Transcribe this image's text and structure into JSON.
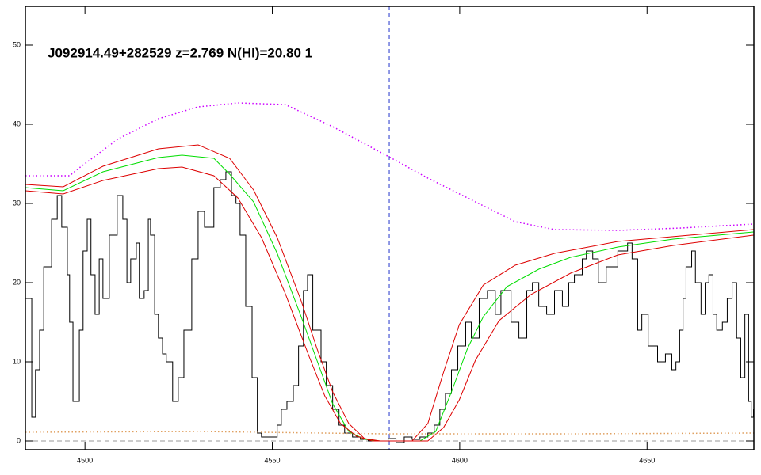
{
  "chart_data": {
    "type": "spectrum",
    "title": "J092914.49+282529 z=2.769 N(HI)=20.80 1",
    "xlim": [
      4484.1,
      4678.5
    ],
    "ylim": [
      -1.1,
      54.9
    ],
    "xticks": [
      4500,
      4550,
      4600,
      4650
    ],
    "yticks": [
      0,
      10,
      20,
      30,
      40,
      50
    ],
    "vline": 4581.2,
    "vline_color": "#2233cc",
    "hline": 0,
    "hline_color": "#999999",
    "series": [
      {
        "style": "step",
        "color": "#000000",
        "x": [
          4484.1,
          4485.8,
          4486.8,
          4487.9,
          4489.0,
          4491.1,
          4492.6,
          4493.8,
          4495.3,
          4495.9,
          4496.8,
          4498.1,
          4498.5,
          4499.5,
          4500.6,
          4501.6,
          4502.7,
          4503.8,
          4504.8,
          4506.5,
          4508.6,
          4510.1,
          4511.2,
          4512.2,
          4513.7,
          4514.5,
          4515.8,
          4516.9,
          4517.5,
          4518.6,
          4519.6,
          4520.7,
          4521.7,
          4523.4,
          4524.9,
          4526.4,
          4528.5,
          4530.2,
          4531.9,
          4534.4,
          4536.1,
          4537.6,
          4539.1,
          4540.3,
          4541.4,
          4542.9,
          4544.6,
          4546.0,
          4547.1,
          4550.3,
          4551.3,
          4552.4,
          4553.9,
          4555.6,
          4557.0,
          4558.3,
          4559.4,
          4560.8,
          4563.0,
          4564.4,
          4566.1,
          4567.8,
          4569.3,
          4571.4,
          4573.5,
          4575.6,
          4579.9,
          4580.9,
          4583.0,
          4585.2,
          4587.3,
          4589.4,
          4591.5,
          4593.2,
          4594.7,
          4596.2,
          4597.8,
          4599.5,
          4601.6,
          4603.1,
          4605.2,
          4607.4,
          4609.5,
          4611.0,
          4613.7,
          4615.8,
          4617.9,
          4619.4,
          4621.1,
          4623.2,
          4625.3,
          4627.4,
          4629.1,
          4630.6,
          4632.7,
          4633.8,
          4635.5,
          4637.0,
          4639.1,
          4642.2,
          4644.8,
          4646.0,
          4647.5,
          4648.6,
          4650.3,
          4652.8,
          4654.9,
          4656.6,
          4657.7,
          4658.7,
          4659.6,
          4660.4,
          4661.9,
          4662.9,
          4664.4,
          4665.5,
          4666.5,
          4667.6,
          4668.6,
          4670.1,
          4671.4,
          4672.7,
          4673.9,
          4675.0,
          4676.1,
          4677.1,
          4677.8,
          4678.4
        ],
        "values": [
          18,
          3,
          9,
          14,
          22,
          28,
          31,
          27,
          21,
          15,
          5,
          5,
          14,
          24,
          28,
          21,
          16,
          23,
          18,
          26,
          31,
          28,
          20,
          23,
          25,
          18,
          19,
          28,
          26,
          16,
          13,
          11,
          10,
          5,
          8,
          14,
          23,
          29,
          27,
          32,
          33,
          34,
          31,
          30,
          26,
          17,
          8,
          1,
          0.5,
          0.5,
          2,
          4,
          5,
          7,
          12,
          19,
          21,
          14,
          10,
          7,
          4,
          2,
          1,
          0.5,
          0.2,
          0,
          0,
          0.3,
          -0.2,
          0.5,
          0.2,
          0.5,
          1,
          2,
          4,
          6,
          9,
          12,
          15,
          13,
          18,
          19,
          16,
          19,
          15,
          13,
          19,
          20,
          17,
          16,
          19,
          17,
          20,
          21,
          23,
          24,
          23,
          20,
          22,
          24,
          25,
          23,
          14,
          16,
          12,
          10,
          11,
          9,
          10,
          14,
          18,
          22,
          24,
          20,
          16,
          20,
          21,
          16,
          14,
          15,
          18,
          20,
          13,
          8,
          16,
          5,
          3,
          4
        ]
      },
      {
        "style": "line",
        "color": "#00dd00",
        "x": [
          4484.1,
          4494.2,
          4504.8,
          4519.6,
          4525.9,
          4534.4,
          4538.6,
          4545.0,
          4551.3,
          4557.7,
          4561.9,
          4566.1,
          4570.4,
          4574.6,
          4578.8,
          4589.4,
          4593.6,
          4597.8,
          4602.1,
          4606.3,
          4612.6,
          4621.1,
          4629.6,
          4642.2,
          4657.0,
          4678.4
        ],
        "values": [
          32,
          31.6,
          34,
          35.8,
          36.1,
          35.7,
          33.7,
          30.2,
          23.7,
          15.7,
          10.2,
          4.7,
          1.2,
          0.2,
          0,
          0,
          1.2,
          6.2,
          11.7,
          15.7,
          19.5,
          21.7,
          23.2,
          24.5,
          25.5,
          26.4
        ]
      },
      {
        "style": "line",
        "color": "#dd0000",
        "x": [
          4484.1,
          4494.2,
          4504.8,
          4519.6,
          4530.2,
          4538.6,
          4545.0,
          4551.3,
          4557.7,
          4561.9,
          4566.1,
          4570.4,
          4574.6,
          4578.8,
          4587.3,
          4591.5,
          4595.7,
          4599.9,
          4606.3,
          4614.8,
          4625.3,
          4642.2,
          4678.4
        ],
        "values": [
          32.4,
          32.1,
          34.7,
          36.9,
          37.4,
          35.7,
          31.7,
          25.7,
          17.7,
          11.7,
          6.2,
          2.2,
          0.3,
          0,
          0,
          2.2,
          8.7,
          14.7,
          19.7,
          22.2,
          23.7,
          25.2,
          26.7
        ]
      },
      {
        "style": "line",
        "color": "#dd0000",
        "x": [
          4484.1,
          4494.2,
          4504.8,
          4519.6,
          4525.9,
          4534.4,
          4540.8,
          4547.1,
          4553.4,
          4559.8,
          4564.0,
          4568.2,
          4572.5,
          4576.7,
          4591.5,
          4595.7,
          4599.9,
          4604.2,
          4610.5,
          4619.0,
          4629.6,
          4642.2,
          4657.0,
          4678.4
        ],
        "values": [
          31.6,
          31.2,
          32.9,
          34.4,
          34.6,
          33.5,
          30.7,
          25.7,
          18.7,
          10.7,
          5.7,
          2.2,
          0.6,
          0,
          0,
          1.7,
          5.2,
          10.2,
          15.2,
          18.5,
          21.2,
          23.5,
          24.7,
          26
        ]
      },
      {
        "style": "dotted",
        "color": "#cc00ff",
        "x": [
          4484.1,
          4495.9,
          4498.5,
          4509.0,
          4519.6,
          4530.2,
          4540.8,
          4553.4,
          4566.1,
          4581.1,
          4591.5,
          4604.2,
          4614.8,
          4625.3,
          4642.2,
          4659.1,
          4678.4
        ],
        "values": [
          33.5,
          33.5,
          34.5,
          38.2,
          40.7,
          42.2,
          42.7,
          42.5,
          39.7,
          35.9,
          33.2,
          30.2,
          27.7,
          26.7,
          26.6,
          26.9,
          27.4
        ]
      },
      {
        "style": "dotted",
        "color": "#e0a060",
        "x": [
          4484.1,
          4530.0,
          4580.0,
          4630.0,
          4678.4
        ],
        "values": [
          1.1,
          1.2,
          0.9,
          0.9,
          1.0
        ]
      }
    ]
  }
}
